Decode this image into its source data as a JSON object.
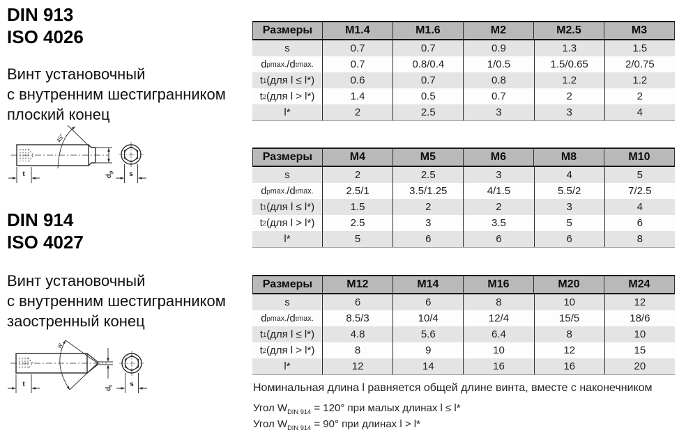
{
  "left": {
    "block1": {
      "std1": "DIN 913",
      "std2": "ISO 4026",
      "desc": [
        "Винт установочный",
        "с внутренним шестигранником",
        "плоский конец"
      ]
    },
    "block2": {
      "std1": "DIN 914",
      "std2": "ISO 4027",
      "desc": [
        "Винт установочный",
        "с внутренним шестигранником",
        "заостренный конец"
      ]
    }
  },
  "drawings": [
    {
      "angle_label": "45°",
      "t_label": "t",
      "d_main": "d",
      "d_sub": "p",
      "s_label": "s"
    },
    {
      "angle_label": "w",
      "t_label": "t",
      "d_main": "d",
      "d_sub": "t",
      "s_label": "s"
    }
  ],
  "tables": [
    {
      "header": [
        "Размеры",
        "M1.4",
        "M1.6",
        "M2",
        "M2.5",
        "M3"
      ],
      "rows": [
        {
          "label": "s",
          "values": [
            "0.7",
            "0.7",
            "0.9",
            "1.3",
            "1.5"
          ]
        },
        {
          "label": "d{p}[ max.]/d{t}[ max.]",
          "values": [
            "0.7",
            "0.8/0.4",
            "1/0.5",
            "1.5/0.65",
            "2/0.75"
          ]
        },
        {
          "label": "t{1} (для l ≤ l*)",
          "values": [
            "0.6",
            "0.7",
            "0.8",
            "1.2",
            "1.2"
          ]
        },
        {
          "label": "t{2} (для l > l*)",
          "values": [
            "1.4",
            "0.5",
            "0.7",
            "2",
            "2"
          ]
        },
        {
          "label": "l*",
          "values": [
            "2",
            "2.5",
            "3",
            "3",
            "4"
          ]
        }
      ]
    },
    {
      "header": [
        "Размеры",
        "M4",
        "M5",
        "M6",
        "M8",
        "M10"
      ],
      "rows": [
        {
          "label": "s",
          "values": [
            "2",
            "2.5",
            "3",
            "4",
            "5"
          ]
        },
        {
          "label": "d{p}[ max.]/d{t}[ max.]",
          "values": [
            "2.5/1",
            "3.5/1.25",
            "4/1.5",
            "5.5/2",
            "7/2.5"
          ]
        },
        {
          "label": "t{1} (для l ≤ l*)",
          "values": [
            "1.5",
            "2",
            "2",
            "3",
            "4"
          ]
        },
        {
          "label": "t{2} (для l > l*)",
          "values": [
            "2.5",
            "3",
            "3.5",
            "5",
            "6"
          ]
        },
        {
          "label": "l*",
          "values": [
            "5",
            "6",
            "6",
            "6",
            "8"
          ]
        }
      ]
    },
    {
      "header": [
        "Размеры",
        "M12",
        "M14",
        "M16",
        "M20",
        "M24"
      ],
      "rows": [
        {
          "label": "s",
          "values": [
            "6",
            "6",
            "8",
            "10",
            "12"
          ]
        },
        {
          "label": "d{p}[ max.]/d{t}[ max.]",
          "values": [
            "8.5/3",
            "10/4",
            "12/4",
            "15/5",
            "18/6"
          ]
        },
        {
          "label": "t{1} (для l ≤ l*)",
          "values": [
            "4.8",
            "5.6",
            "6.4",
            "8",
            "10"
          ]
        },
        {
          "label": "t{2} (для l > l*)",
          "values": [
            "8",
            "9",
            "10",
            "12",
            "15"
          ]
        },
        {
          "label": "l*",
          "values": [
            "12",
            "14",
            "16",
            "16",
            "20"
          ]
        }
      ]
    }
  ],
  "notes": {
    "line1": "Номинальная длина l равняется общей длине винта, вместе с наконечником",
    "line2": "Угол W{DIN 914} = 120° при малых длинах l ≤ l*",
    "line3": "Угол W{DIN 914} = 90° при длинах l > l*"
  },
  "colors": {
    "header_bg": "#b9b9b9",
    "row_alt_bg": "#e4e4e4",
    "border_dark": "#161616",
    "line_gray": "#a0a0a0"
  }
}
